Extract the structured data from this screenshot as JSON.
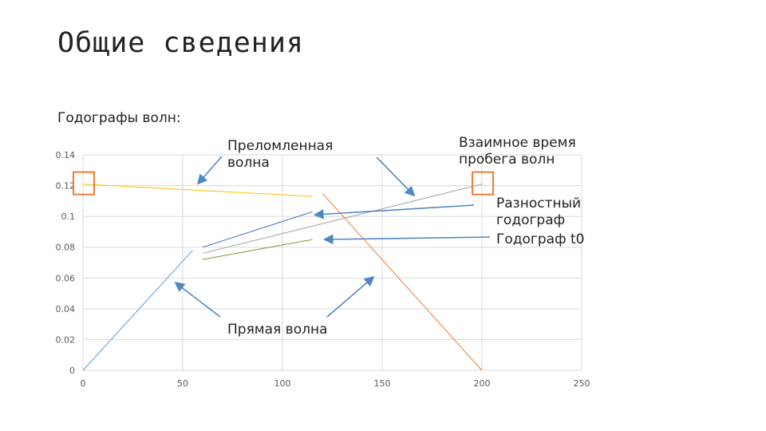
{
  "slide": {
    "title": "Общие сведения",
    "subtitle": "Годографы волн:"
  },
  "annotations": {
    "refracted": "Преломленная\nволна",
    "mutual_time": "Взаимное время\nпробега волн",
    "difference": "Разностный\nгодограф",
    "t0": "Годограф t0",
    "direct": "Прямая волна"
  },
  "colors": {
    "grid": "#d9d9d9",
    "tick_text": "#595959",
    "direct": "#5b9bd5",
    "refracted_forward": "#ed7d31",
    "refracted_reverse": "#ffc000",
    "difference": "#a5a5a5",
    "difference_upper": "#4472c4",
    "t0": "#70ad47",
    "t0_line": "#8a8f2a",
    "arrow": "#4f87c4",
    "highlight_box": "#ed7d31"
  },
  "chart_data": {
    "type": "line",
    "xlim": [
      0,
      250
    ],
    "ylim": [
      0,
      0.14
    ],
    "x_ticks": [
      "0",
      "50",
      "100",
      "150",
      "200",
      "250"
    ],
    "y_ticks": [
      "0",
      "0.02",
      "0.04",
      "0.06",
      "0.08",
      "0.1",
      "0.12",
      "0.14"
    ],
    "grid": true,
    "series": [
      {
        "color_key": "direct",
        "points": [
          [
            0,
            0
          ],
          [
            55,
            0.078
          ]
        ]
      },
      {
        "color_key": "refracted_forward",
        "points": [
          [
            120,
            0.115
          ],
          [
            200,
            0
          ]
        ]
      },
      {
        "color_key": "refracted_reverse",
        "points": [
          [
            0,
            0.121
          ],
          [
            115,
            0.113
          ]
        ]
      },
      {
        "color_key": "difference",
        "points": [
          [
            60,
            0.076
          ],
          [
            200,
            0.121
          ]
        ]
      },
      {
        "color_key": "difference_upper",
        "points": [
          [
            60,
            0.08
          ],
          [
            115,
            0.103
          ]
        ]
      },
      {
        "color_key": "t0_line",
        "points": [
          [
            60,
            0.072
          ],
          [
            115,
            0.085
          ]
        ]
      }
    ],
    "highlights": [
      [
        0,
        0.121
      ],
      [
        200,
        0.121
      ]
    ]
  }
}
